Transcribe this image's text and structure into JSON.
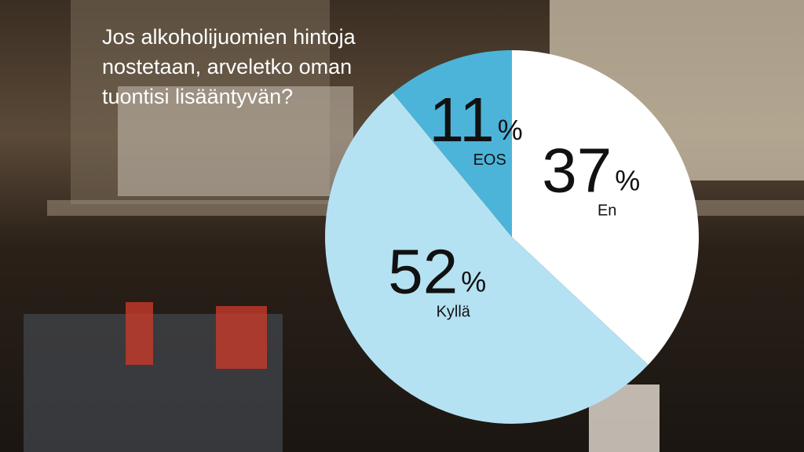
{
  "chart_data": {
    "type": "pie",
    "title": "Jos alkoholijuomien hintoja nostetaan, arveletko oman tuontisi lisääntyvän?",
    "categories": [
      "En",
      "Kyllä",
      "EOS"
    ],
    "values": [
      37,
      52,
      11
    ],
    "unit": "%",
    "colors": [
      "#ffffff",
      "#b5e2f3",
      "#4cb4d8"
    ]
  }
}
